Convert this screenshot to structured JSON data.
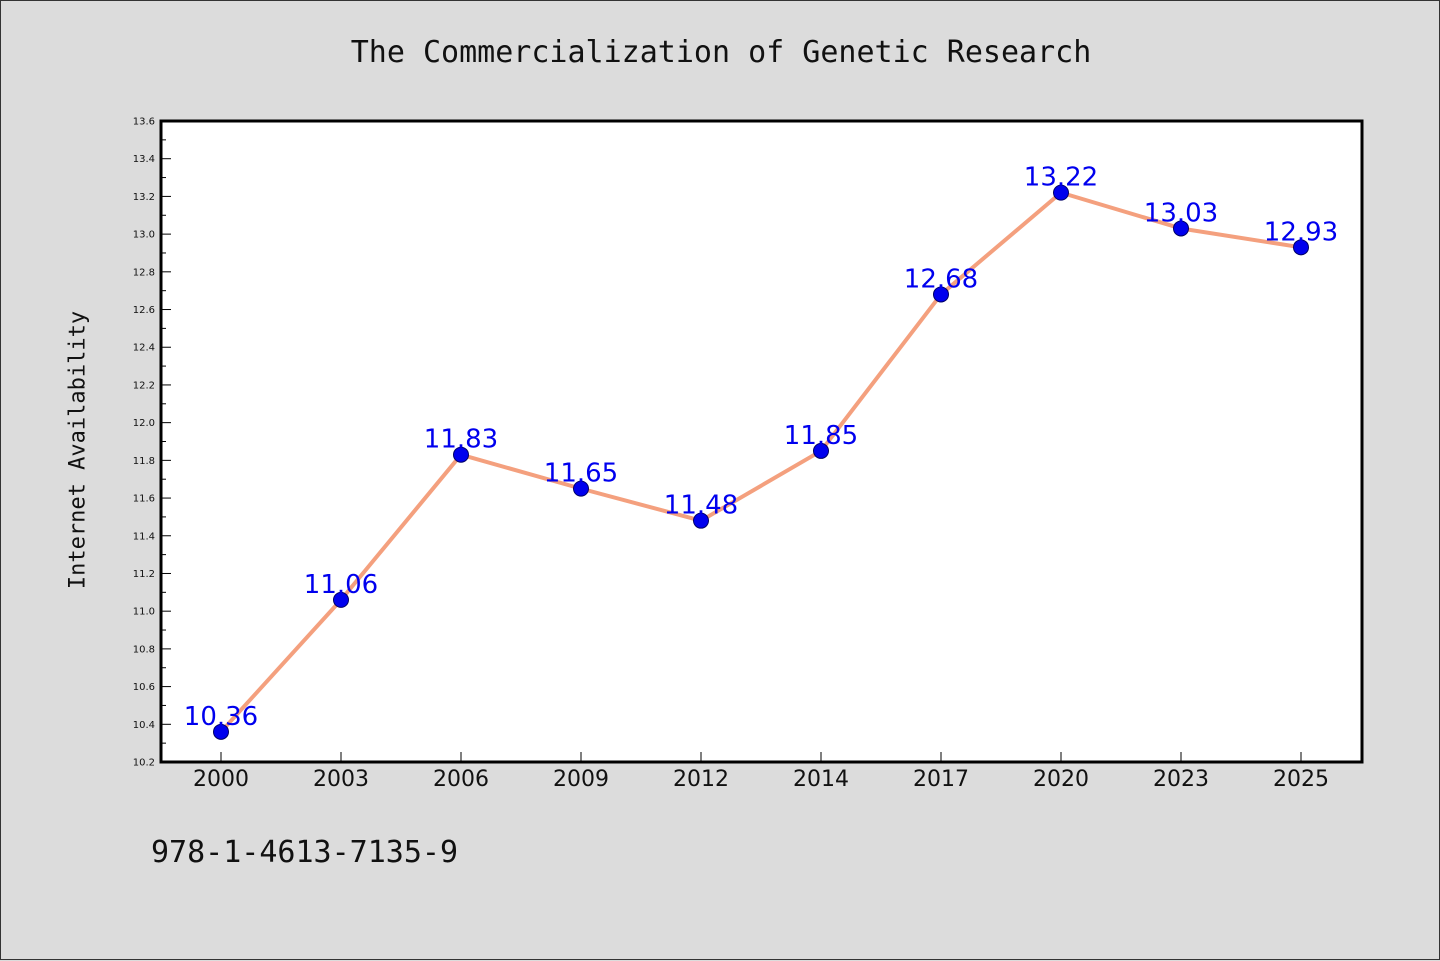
{
  "figure": {
    "footer_text": "978-1-4613-7135-9"
  },
  "chart_data": {
    "type": "line",
    "title": "The Commercialization of Genetic Research",
    "xlabel": "",
    "ylabel": "Internet Availability",
    "categories": [
      "2000",
      "2003",
      "2006",
      "2009",
      "2012",
      "2014",
      "2017",
      "2020",
      "2023",
      "2025"
    ],
    "series": [
      {
        "values": [
          10.36,
          11.06,
          11.83,
          11.65,
          11.48,
          11.85,
          12.68,
          13.22,
          13.03,
          12.93
        ],
        "data_labels": [
          "10.36",
          "11.06",
          "11.83",
          "11.65",
          "11.48",
          "11.85",
          "12.68",
          "13.22",
          "13.03",
          "12.93"
        ]
      }
    ],
    "ylim": [
      10.2,
      13.6
    ],
    "y_ticks": [
      "10.2",
      "10.4",
      "10.6",
      "10.8",
      "11.0",
      "11.2",
      "11.4",
      "11.6",
      "11.8",
      "12.0",
      "12.2",
      "12.4",
      "12.6",
      "12.8",
      "13.0",
      "13.2",
      "13.4",
      "13.6"
    ],
    "grid": false,
    "legend": "none",
    "colors": {
      "line": "#f4a07e",
      "marker": "#0000ee",
      "marker_edge": "#000066",
      "data_label": "#0000ee",
      "background": "#dcdcdc",
      "plot_background": "#ffffff"
    }
  }
}
